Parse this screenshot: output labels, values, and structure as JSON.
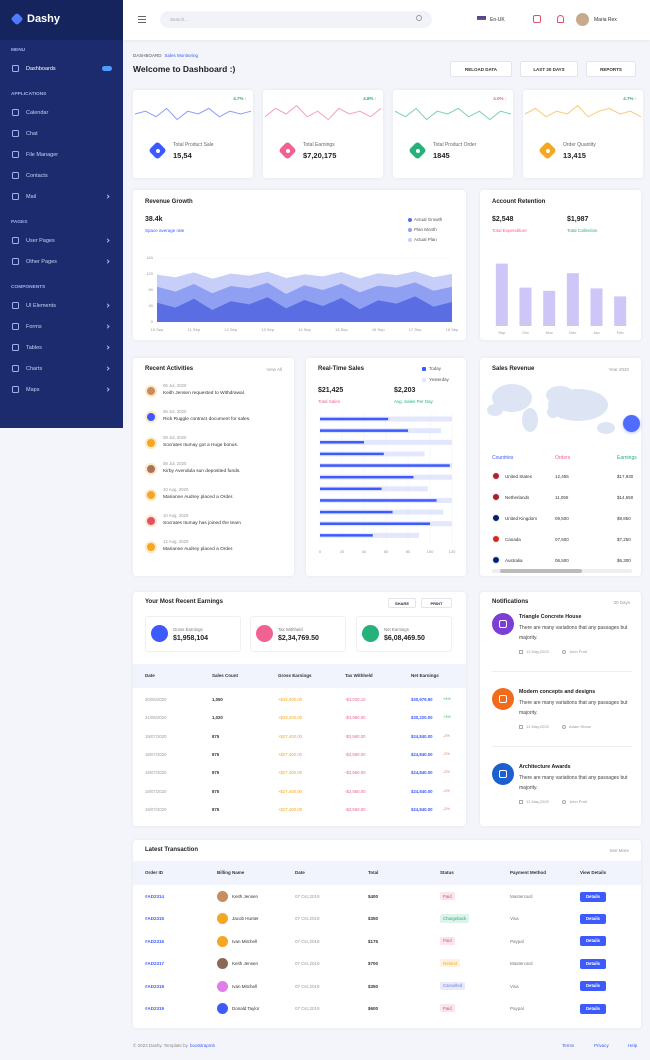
{
  "sidebar": {
    "logo": "Dashy",
    "sections": [
      {
        "title": "MENU",
        "items": [
          {
            "label": "Dashboards",
            "active": true,
            "badge": true
          }
        ]
      },
      {
        "title": "APPLICATIONS",
        "items": [
          {
            "label": "Calendar"
          },
          {
            "label": "Chat"
          },
          {
            "label": "File Manager"
          },
          {
            "label": "Contacts"
          },
          {
            "label": "Mail",
            "submenu": true
          }
        ]
      },
      {
        "title": "PAGES",
        "items": [
          {
            "label": "User Pages",
            "submenu": true
          },
          {
            "label": "Other Pages",
            "submenu": true
          }
        ]
      },
      {
        "title": "COMPONENTS",
        "items": [
          {
            "label": "UI Elements",
            "submenu": true
          },
          {
            "label": "Forms",
            "submenu": true
          },
          {
            "label": "Tables",
            "submenu": true
          },
          {
            "label": "Charts",
            "submenu": true
          },
          {
            "label": "Maps",
            "submenu": true
          }
        ]
      }
    ]
  },
  "header": {
    "search_placeholder": "Search...",
    "language": "En-UK",
    "user": "Maria Rex"
  },
  "page": {
    "breadcrumb": [
      "DASHBOARD",
      "Sales Monitoring"
    ],
    "title": "Welcome to Dashboard :)",
    "buttons": [
      "RELOAD DATA",
      "LAST 30 DAYS",
      "REPORTS"
    ]
  },
  "stats": {
    "ylim": [
      0,
      10
    ],
    "items": [
      {
        "label": "Total Product Sale",
        "value": "15,54",
        "change": "4.7% ↑",
        "change_color": "#26b07a",
        "color": "#3d5afe",
        "trend": [
          5,
          6,
          4,
          7,
          3,
          6,
          5,
          7,
          4,
          6,
          5,
          6
        ]
      },
      {
        "label": "Total Earnings",
        "value": "$7,20,175",
        "change": "4.8% ↑",
        "change_color": "#26b07a",
        "color": "#f06292",
        "trend": [
          4,
          7,
          5,
          8,
          4,
          6,
          3,
          7,
          5,
          6,
          4,
          7
        ]
      },
      {
        "label": "Total Product Order",
        "value": "1845",
        "change": "4.0% ↓",
        "change_color": "#f06292",
        "color": "#26b07a",
        "trend": [
          6,
          4,
          7,
          3,
          6,
          5,
          7,
          4,
          6,
          3,
          6,
          5
        ]
      },
      {
        "label": "Order Quantity",
        "value": "13,415",
        "change": "4.7% ↑",
        "change_color": "#26b07a",
        "color": "#f5a623",
        "trend": [
          5,
          7,
          4,
          6,
          5,
          8,
          4,
          6,
          7,
          5,
          6,
          4
        ]
      }
    ]
  },
  "revenue_growth": {
    "title": "Revenue Growth",
    "value": "38.4k",
    "subtitle": "Space average rate",
    "chart": {
      "type": "area",
      "grid": true,
      "categories": [
        "10 Sep",
        null,
        "11 Sep",
        null,
        "12 Sep",
        null,
        "13 Sep",
        null,
        "14 Sep",
        null,
        "15 Sep",
        null,
        "16 Sep",
        null,
        "17 Sep",
        null,
        "18 Sep"
      ],
      "ylim": [
        0,
        160
      ],
      "yticks": [
        0,
        40,
        80,
        120,
        160
      ],
      "series": [
        {
          "name": "Actual Growth",
          "color": "#5a6de3",
          "values": [
            48,
            36,
            58,
            30,
            52,
            44,
            62,
            34,
            55,
            40,
            60,
            32,
            54,
            46,
            64,
            38,
            50
          ]
        },
        {
          "name": "Plan Month",
          "color": "#8f9ff2",
          "values": [
            88,
            76,
            95,
            72,
            90,
            84,
            98,
            70,
            92,
            80,
            96,
            74,
            91,
            86,
            99,
            78,
            88
          ]
        },
        {
          "name": "Actual Plan",
          "color": "#c7cff8",
          "values": [
            118,
            112,
            124,
            108,
            121,
            116,
            126,
            110,
            119,
            114,
            125,
            109,
            122,
            117,
            127,
            112,
            120
          ]
        }
      ]
    }
  },
  "account_retention": {
    "title": "Account Retention",
    "stats": [
      {
        "value": "$2,548",
        "label": "Total Expenditure",
        "color": "#f06292"
      },
      {
        "value": "$1,987",
        "label": "Total Collection",
        "color": "#26b07a"
      }
    ],
    "chart": {
      "type": "bar",
      "categories": [
        "Sep",
        "Oct",
        "Nov",
        "Dec",
        "Jan",
        "Feb"
      ],
      "values": [
        78,
        48,
        44,
        66,
        47,
        37
      ],
      "ylim": [
        0,
        100
      ],
      "color": "#cdc6f6"
    }
  },
  "activities": {
    "title": "Recent Activities",
    "link": "View All",
    "items": [
      {
        "date": "06 Jul, 2020",
        "text": "Keith Jensen requested to Withdrawal."
      },
      {
        "date": "06 Jul, 2020",
        "text": "Rick Ruggle contract document for sales."
      },
      {
        "date": "08 Jul, 2020",
        "text": "Socrates Itumay got a Huge bonus."
      },
      {
        "date": "08 Jul, 2020",
        "text": "Kirby Avendula sun deposited funds."
      },
      {
        "date": "10 Aug, 2020",
        "text": "Marianne Audrey placed a Order."
      },
      {
        "date": "10 Aug, 2020",
        "text": "Socrates Itumay has joined the team"
      },
      {
        "date": "12 Aug, 2020",
        "text": "Marianne Audrey placed a Order."
      }
    ]
  },
  "realtime_sales": {
    "title": "Real-Time Sales",
    "stats": [
      {
        "value": "$21,425",
        "label": "Total Sales",
        "color": "#f06292"
      },
      {
        "value": "$2,203",
        "label": "Avg. Sales Per Day",
        "color": "#26b07a"
      }
    ],
    "chart": {
      "type": "bar",
      "horizontal": true,
      "grid": true,
      "xlim": [
        0,
        120
      ],
      "xticks": [
        0,
        20,
        40,
        60,
        80,
        100,
        120
      ],
      "series": [
        {
          "name": "Today",
          "color": "#3d5afe",
          "values": [
            62,
            80,
            40,
            58,
            118,
            85,
            56,
            106,
            66,
            100,
            48
          ]
        },
        {
          "name": "Yesterday",
          "color": "#e3e7fd",
          "values": [
            120,
            110,
            120,
            95,
            120,
            120,
            98,
            120,
            112,
            120,
            90
          ]
        }
      ]
    }
  },
  "sales_revenue": {
    "title": "Sales Revenue",
    "period": "Year 2020",
    "columns": [
      "Countries",
      "Orders",
      "Earnings"
    ],
    "rows": [
      [
        "United States",
        "12,455",
        "$17,930"
      ],
      [
        "Netherlands",
        "11,055",
        "$14,650"
      ],
      [
        "United Kingdom",
        "09,500",
        "$9,850"
      ],
      [
        "Canada",
        "07,500",
        "$7,250"
      ],
      [
        "Australia",
        "06,500",
        "$6,300"
      ]
    ]
  },
  "earnings": {
    "title": "Your Most Recent Earnings",
    "buttons": [
      "SHARE",
      "PRINT"
    ],
    "stats": [
      {
        "label": "Gross Earnings",
        "value": "$1,958,104",
        "color": "#3d5afe"
      },
      {
        "label": "Tax Withheld",
        "value": "$2,34,769.50",
        "color": "#f06292"
      },
      {
        "label": "Net Earnings",
        "value": "$6,08,469.50",
        "color": "#26b07a"
      }
    ],
    "columns": [
      "Date",
      "Sales Count",
      "Gross Earnings",
      "Tax Withheld",
      "Net Earnings"
    ],
    "rows": [
      {
        "cells": [
          "20/05/2020",
          "1,050",
          "+$34,000.00",
          "-$3,020.10",
          "$30,979.90"
        ],
        "change": "+4%",
        "change_color": "#26b07a"
      },
      {
        "cells": [
          "21/05/2020",
          "1,020",
          "+$33,200.00",
          "-$2,980.00",
          "$30,220.00"
        ],
        "change": "+3%",
        "change_color": "#26b07a"
      },
      {
        "cells": [
          "19/07/2020",
          "875",
          "+$27,400.00",
          "-$2,560.00",
          "$24,840.00"
        ],
        "change": "-2%",
        "change_color": "#f06292"
      },
      {
        "cells": [
          "19/07/2020",
          "875",
          "+$27,400.00",
          "-$2,560.00",
          "$24,840.00"
        ],
        "change": "-2%",
        "change_color": "#f06292"
      },
      {
        "cells": [
          "19/07/2020",
          "875",
          "+$27,400.00",
          "-$2,560.00",
          "$24,840.00"
        ],
        "change": "-2%",
        "change_color": "#f06292"
      },
      {
        "cells": [
          "19/07/2020",
          "875",
          "+$27,400.00",
          "-$2,560.00",
          "$24,840.00"
        ],
        "change": "-2%",
        "change_color": "#f06292"
      },
      {
        "cells": [
          "19/07/2020",
          "875",
          "+$27,400.00",
          "-$2,560.00",
          "$24,840.00"
        ],
        "change": "-2%",
        "change_color": "#f06292"
      }
    ]
  },
  "notifications": {
    "title": "Notifications",
    "period": "30 Days",
    "items": [
      {
        "title": "Triangle Concrete House",
        "text": "There are many variations that any passages but majority.",
        "date": "12 May,2020",
        "author": "John Pruit"
      },
      {
        "title": "Modern concepts and designs",
        "text": "There are many variations that any passages but majority.",
        "date": "12 May,2020",
        "author": "Adam Stone"
      },
      {
        "title": "Architecture Awards",
        "text": "There are many variations that any passages but majority.",
        "date": "12 May,2020",
        "author": "John Pruit"
      }
    ]
  },
  "transactions": {
    "title": "Latest Transaction",
    "link": "See More",
    "button": "Details",
    "columns": [
      "Order ID",
      "Billing Name",
      "Date",
      "Total",
      "Status",
      "Payment Method",
      "View Details"
    ],
    "rows": [
      {
        "id": "#AD2314",
        "name": "Keith Jensen",
        "date": "07 Oct,2019",
        "total": "$400",
        "status": {
          "label": "Paid",
          "color": "#e4506b"
        },
        "payment": "Mastercard"
      },
      {
        "id": "#AD2315",
        "name": "Jacob Hunter",
        "date": "07 Oct,2019",
        "total": "$350",
        "status": {
          "label": "Chargeback",
          "color": "#26b07a"
        },
        "payment": "Visa"
      },
      {
        "id": "#AD2316",
        "name": "Ivan Mitchell",
        "date": "07 Oct,2019",
        "total": "$175",
        "status": {
          "label": "Paid",
          "color": "#e4506b"
        },
        "payment": "Paypal"
      },
      {
        "id": "#AD2317",
        "name": "Keith Jensen",
        "date": "07 Oct,2019",
        "total": "$700",
        "status": {
          "label": "Refund",
          "color": "#f5a623"
        },
        "payment": "Mastercard"
      },
      {
        "id": "#AD2318",
        "name": "Ivan Mitchell",
        "date": "07 Oct,2019",
        "total": "$350",
        "status": {
          "label": "Cancelled",
          "color": "#6c7ae0"
        },
        "payment": "Visa"
      },
      {
        "id": "#AD2319",
        "name": "Donald Taylor",
        "date": "07 Oct,2019",
        "total": "$600",
        "status": {
          "label": "Paid",
          "color": "#e4506b"
        },
        "payment": "Paypal"
      }
    ]
  },
  "footer": {
    "copyright": "© 2023 Dashy. Template by",
    "author": "bootstrapmb",
    "links": [
      "Terms",
      "Privacy",
      "Help"
    ]
  }
}
